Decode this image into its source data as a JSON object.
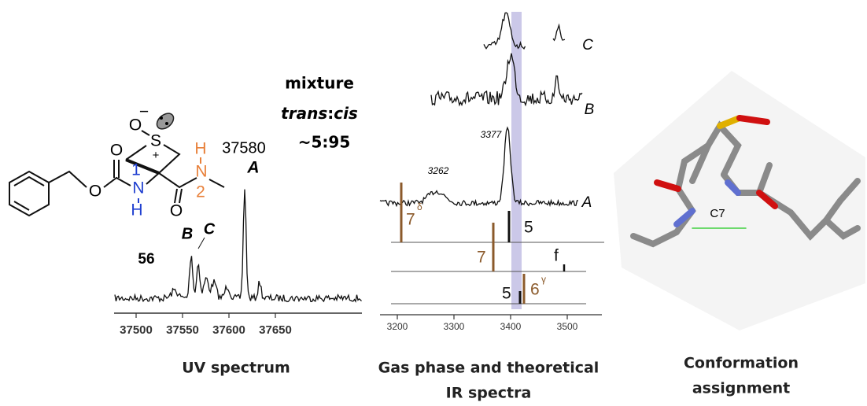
{
  "molecule": {
    "sulfoxide_O": "O",
    "charge_minus": "−",
    "S": "S",
    "charge_plus": "+",
    "ester_O": "O",
    "carbonyl_O_1": "O",
    "N1": "N",
    "N1_index": "1",
    "N1_H": "H",
    "N2": "N",
    "N2_H": "H",
    "N2_index": "2",
    "carbonyl_O_2": "O"
  },
  "mixture_note": {
    "line1": "mixture",
    "trans": "trans",
    "colon": ":",
    "cis": "cis",
    "ratio": "~5:95"
  },
  "uv_panel": {
    "peak_label": "37580",
    "compound": "56",
    "peak_A": "A",
    "peak_B": "B",
    "peak_C": "C",
    "axis_ticks": [
      37500,
      37550,
      37600,
      37650
    ],
    "caption": "UV spectrum"
  },
  "ir_panel": {
    "trace_A": "A",
    "trace_B": "B",
    "trace_C": "C",
    "band_3262": "3262",
    "band_3377": "3377",
    "conformer_7_delta": "7",
    "delta": "δ",
    "conformer_5_top": "5",
    "conformer_7": "7",
    "conformer_f": "f",
    "conformer_6_gamma": "6",
    "gamma": "γ",
    "conformer_5_bottom": "5",
    "axis_ticks": [
      3200,
      3300,
      3400,
      3500
    ],
    "caption_line1": "Gas phase and theoretical",
    "caption_line2": "IR spectra"
  },
  "conformation_panel": {
    "hbond_label": "C7",
    "caption_line1": "Conformation",
    "caption_line2": "assignment"
  }
}
